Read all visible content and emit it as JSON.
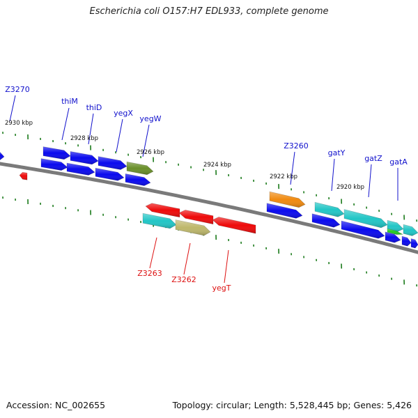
{
  "title": "Escherichia coli O157:H7 EDL933, complete genome",
  "footer": {
    "accession": "Accession: NC_002655",
    "summary": "Topology: circular; Length: 5,528,445 bp; Genes: 5,426"
  },
  "colors": {
    "backbone": "#7a7a7a",
    "tick": "#1a7a1a",
    "forward_label": "#1010cc",
    "reverse_label": "#dd1010",
    "blue": "#0a0aee",
    "cyan": "#22c6c6",
    "olive": "#6a8f2a",
    "orange": "#f08a10",
    "red": "#ee0a0a",
    "khaki": "#bdb76b",
    "green": "#22cc22"
  },
  "scale_labels": [
    "2930 kbp",
    "2928 kbp",
    "2926 kbp",
    "2924 kbp",
    "2922 kbp",
    "2920 kbp"
  ],
  "forward_gene_labels": [
    "Z3270",
    "thiM",
    "thiD",
    "yegX",
    "yegW",
    "Z3260",
    "gatY",
    "gatZ",
    "gatA"
  ],
  "reverse_gene_labels": [
    "Z3263",
    "Z3262",
    "yegT"
  ],
  "feature_colors": {
    "forward_outer": [
      "blue",
      "blue",
      "blue",
      "olive",
      "orange",
      "cyan",
      "cyan",
      "cyan",
      "cyan",
      "green"
    ],
    "forward_inner": [
      "blue",
      "blue",
      "blue",
      "blue",
      "blue",
      "blue",
      "blue",
      "blue",
      "blue",
      "blue"
    ],
    "reverse_outer": [
      "red",
      "red",
      "red",
      "red"
    ],
    "reverse_inner": [
      "cyan",
      "khaki"
    ]
  }
}
